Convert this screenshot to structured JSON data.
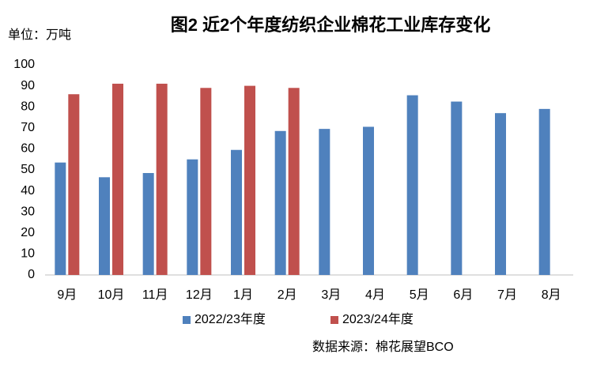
{
  "chart_data": {
    "type": "bar",
    "title": "图2 近2个年度纺织企业棉花工业库存变化",
    "unit_label": "单位：万吨",
    "source": "数据来源：棉花展望BCO",
    "categories": [
      "9月",
      "10月",
      "11月",
      "12月",
      "1月",
      "2月",
      "3月",
      "4月",
      "5月",
      "6月",
      "7月",
      "8月"
    ],
    "series": [
      {
        "name": "2022/23年度",
        "color": "#4f81bd",
        "values": [
          53.5,
          46.5,
          48.5,
          55,
          59.5,
          68.5,
          69.5,
          70.5,
          85.5,
          82.5,
          77,
          79
        ]
      },
      {
        "name": "2023/24年度",
        "color": "#c0504d",
        "values": [
          86,
          91,
          91,
          89,
          90,
          89,
          null,
          null,
          null,
          null,
          null,
          null
        ]
      }
    ],
    "ylim": [
      0,
      100
    ],
    "yticks": [
      0,
      10,
      20,
      30,
      40,
      50,
      60,
      70,
      80,
      90,
      100
    ],
    "grid": false,
    "legend": "bottom"
  }
}
